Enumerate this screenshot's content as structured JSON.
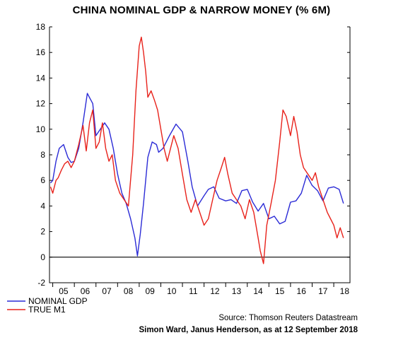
{
  "chart_data": {
    "type": "line",
    "title": "CHINA NOMINAL GDP & NARROW MONEY (% 6M)",
    "xlabel": "",
    "ylabel": "",
    "ylim": [
      -2,
      18
    ],
    "y_ticks": [
      "-2",
      "0",
      "2",
      "4",
      "6",
      "8",
      "10",
      "12",
      "14",
      "16",
      "18"
    ],
    "x_ticks": [
      "05",
      "06",
      "07",
      "08",
      "09",
      "10",
      "11",
      "12",
      "13",
      "14",
      "15",
      "16",
      "17",
      "18"
    ],
    "zero_line": true,
    "grid": false,
    "legend_position": "bottom-left",
    "series": [
      {
        "name": "NOMINAL GDP",
        "color": "#2b2bd6",
        "x": [
          2004.9,
          2005.0,
          2005.15,
          2005.3,
          2005.5,
          2005.7,
          2005.85,
          2006.0,
          2006.2,
          2006.4,
          2006.6,
          2006.85,
          2007.0,
          2007.2,
          2007.4,
          2007.6,
          2007.8,
          2008.0,
          2008.2,
          2008.4,
          2008.6,
          2008.8,
          2008.92,
          2009.05,
          2009.2,
          2009.4,
          2009.6,
          2009.8,
          2009.9,
          2010.1,
          2010.4,
          2010.7,
          2011.0,
          2011.25,
          2011.45,
          2011.7,
          2012.0,
          2012.2,
          2012.45,
          2012.7,
          2013.0,
          2013.25,
          2013.5,
          2013.75,
          2014.0,
          2014.25,
          2014.5,
          2014.75,
          2015.0,
          2015.25,
          2015.5,
          2015.75,
          2016.0,
          2016.25,
          2016.5,
          2016.75,
          2017.0,
          2017.25,
          2017.5,
          2017.75,
          2018.0,
          2018.25,
          2018.45
        ],
        "values": [
          5.8,
          6.0,
          7.5,
          8.5,
          8.8,
          7.8,
          7.4,
          7.5,
          8.5,
          10.5,
          12.8,
          12.0,
          9.5,
          10.0,
          10.5,
          10.0,
          8.5,
          6.5,
          5.0,
          4.2,
          3.0,
          1.5,
          0.1,
          1.8,
          4.2,
          7.8,
          9.0,
          8.8,
          8.2,
          8.5,
          9.5,
          10.4,
          9.8,
          7.5,
          5.5,
          4.0,
          4.8,
          5.3,
          5.5,
          4.6,
          4.4,
          4.5,
          4.2,
          5.2,
          5.3,
          4.3,
          3.6,
          4.2,
          3.0,
          3.2,
          2.6,
          2.8,
          4.3,
          4.4,
          5.0,
          6.4,
          5.6,
          5.2,
          4.4,
          5.4,
          5.5,
          5.3,
          4.2
        ]
      },
      {
        "name": "TRUE M1",
        "color": "#e8221b",
        "x": [
          2004.9,
          2005.0,
          2005.15,
          2005.25,
          2005.4,
          2005.55,
          2005.7,
          2005.85,
          2006.0,
          2006.2,
          2006.4,
          2006.55,
          2006.7,
          2006.85,
          2007.0,
          2007.15,
          2007.3,
          2007.45,
          2007.6,
          2007.75,
          2007.9,
          2008.1,
          2008.3,
          2008.5,
          2008.7,
          2008.85,
          2009.0,
          2009.1,
          2009.2,
          2009.3,
          2009.4,
          2009.55,
          2009.7,
          2009.85,
          2010.0,
          2010.15,
          2010.3,
          2010.45,
          2010.6,
          2010.8,
          2011.0,
          2011.2,
          2011.4,
          2011.6,
          2011.8,
          2012.0,
          2012.2,
          2012.4,
          2012.6,
          2012.8,
          2012.95,
          2013.1,
          2013.3,
          2013.5,
          2013.7,
          2013.9,
          2014.1,
          2014.3,
          2014.5,
          2014.6,
          2014.75,
          2014.9,
          2015.1,
          2015.3,
          2015.5,
          2015.65,
          2015.8,
          2016.0,
          2016.15,
          2016.3,
          2016.45,
          2016.6,
          2016.8,
          2017.0,
          2017.15,
          2017.3,
          2017.5,
          2017.7,
          2017.85,
          2018.0,
          2018.15,
          2018.3,
          2018.45
        ],
        "values": [
          5.5,
          5.0,
          6.0,
          6.2,
          6.8,
          7.3,
          7.5,
          7.0,
          7.5,
          8.8,
          10.3,
          8.3,
          10.5,
          11.5,
          8.5,
          9.0,
          10.5,
          8.5,
          7.5,
          8.0,
          6.0,
          5.0,
          4.5,
          4.0,
          8.0,
          13.0,
          16.5,
          17.2,
          16.0,
          14.5,
          12.5,
          13.0,
          12.3,
          11.5,
          10.0,
          8.5,
          7.5,
          8.5,
          9.5,
          8.5,
          6.5,
          4.5,
          3.5,
          4.5,
          3.5,
          2.5,
          3.0,
          4.5,
          6.0,
          7.0,
          7.8,
          6.5,
          5.0,
          4.5,
          4.0,
          3.0,
          4.5,
          3.5,
          1.5,
          0.5,
          -0.5,
          2.5,
          4.2,
          6.0,
          9.0,
          11.5,
          11.0,
          9.5,
          11.0,
          9.8,
          8.0,
          7.0,
          6.5,
          6.0,
          6.6,
          5.5,
          4.5,
          3.5,
          3.0,
          2.5,
          1.5,
          2.3,
          1.5
        ]
      }
    ]
  },
  "source": "Source: Thomson Reuters Datastream",
  "credit": "Simon Ward, Janus Henderson, as at 12 September 2018"
}
